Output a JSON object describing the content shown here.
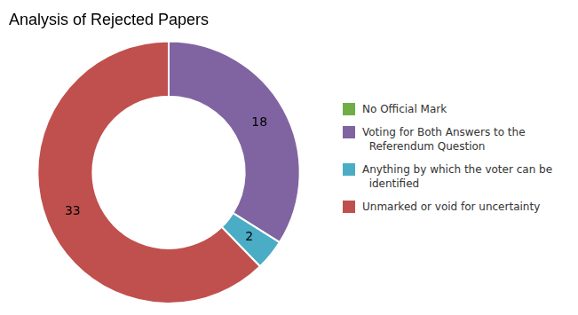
{
  "chart_data": {
    "type": "doughnut",
    "title": "Analysis of Rejected Papers",
    "categories": [
      "No Official Mark",
      "Voting for Both Answers to the\n  Referendum Question",
      "Anything by which the voter can be\n  identified",
      "Unmarked or void for uncertainty"
    ],
    "values": [
      0.0001,
      18,
      2,
      33
    ],
    "value_labels": [
      null,
      "18",
      "2",
      "33"
    ],
    "colors": [
      "#70ad47",
      "#8064a2",
      "#4bacc6",
      "#c0504d"
    ],
    "data_labels": true,
    "legend": "right"
  }
}
